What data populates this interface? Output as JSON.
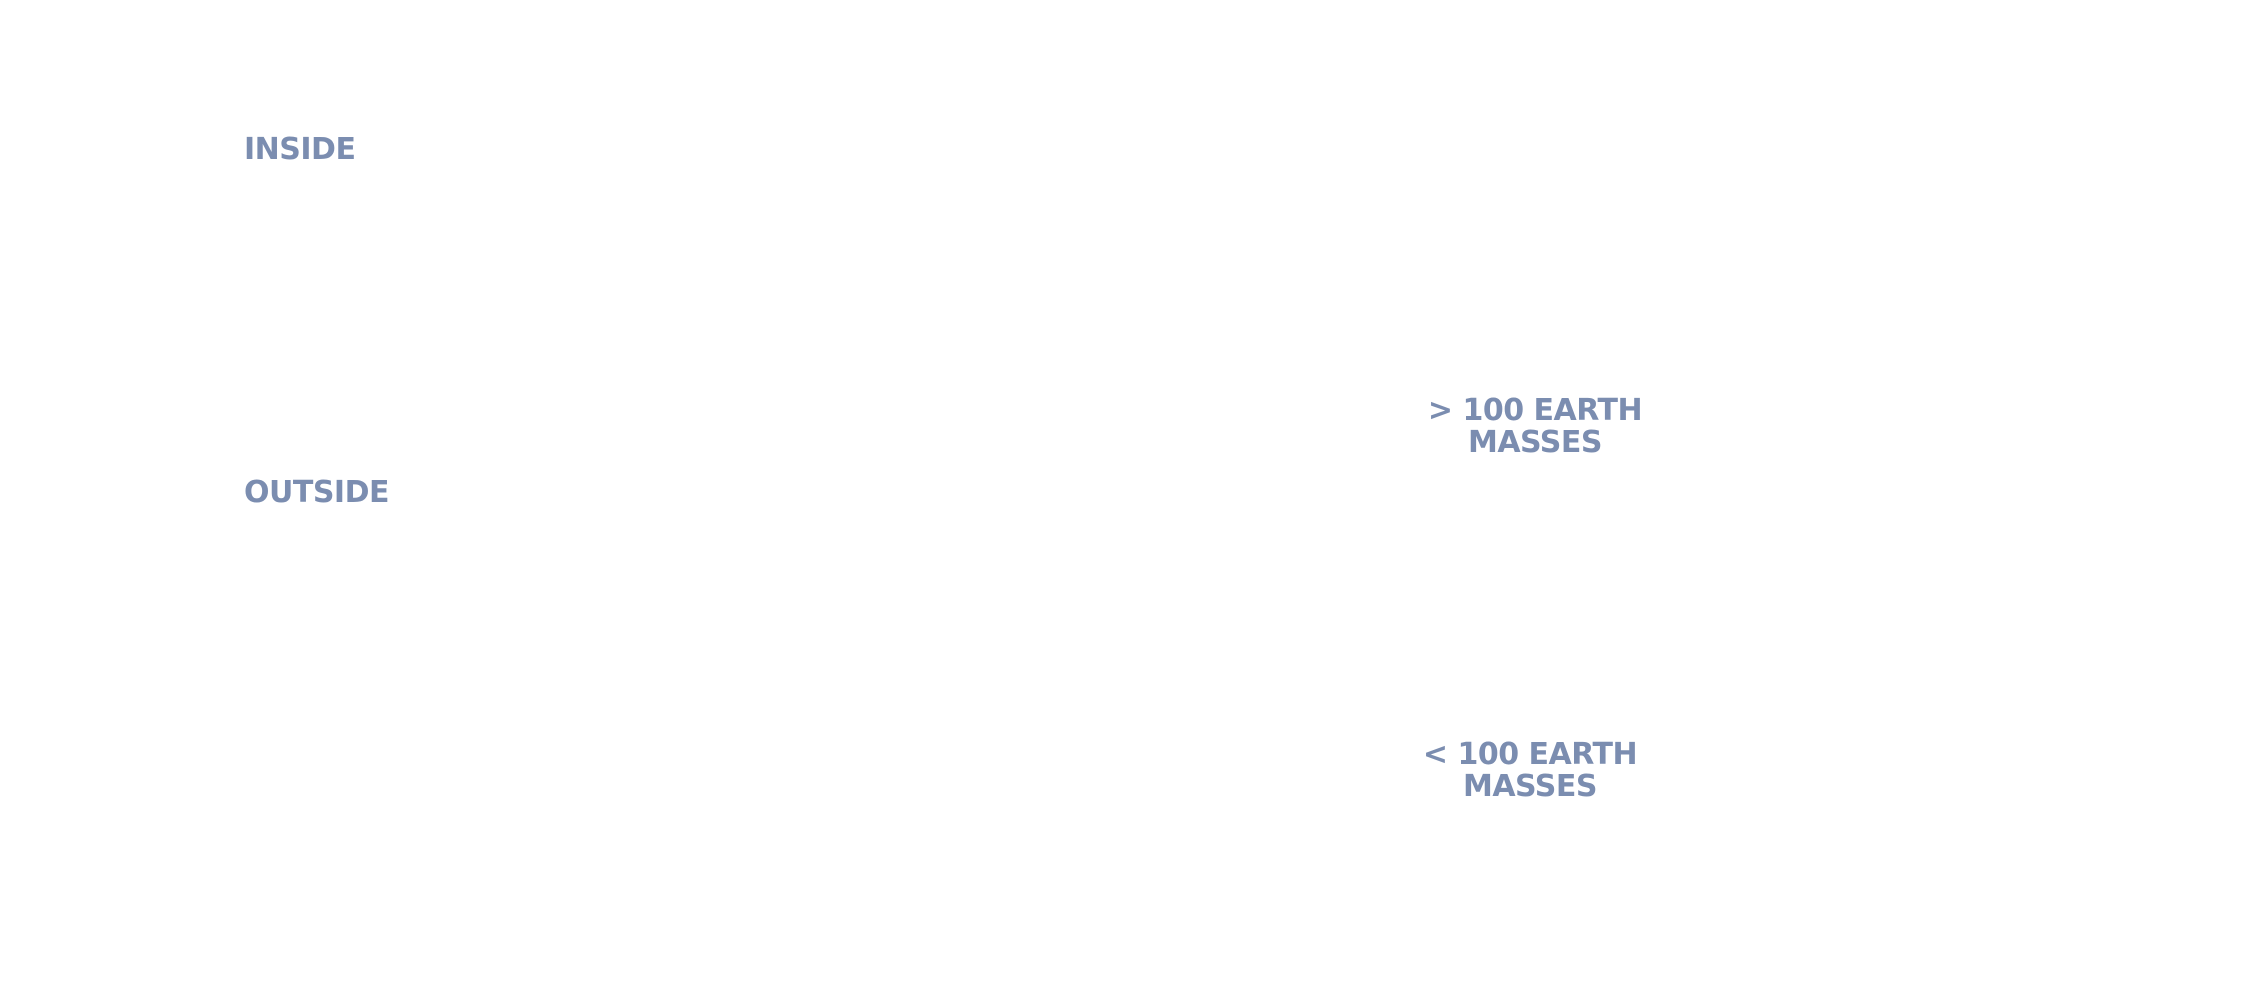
{
  "rows": {
    "inside": "INSIDE",
    "outside": "OUTSIDE"
  },
  "mass_labels": {
    "greater": {
      "line1": "> 100 EARTH",
      "line2": "MASSES"
    },
    "less": {
      "line1": "< 100 EARTH",
      "line2": "MASSES"
    }
  },
  "colors": {
    "label_text": "#7b8db0",
    "background": "#ffffff"
  }
}
